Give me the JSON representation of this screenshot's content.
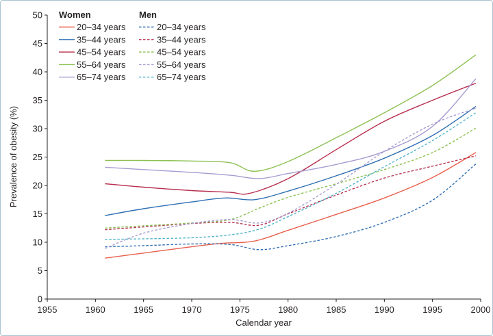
{
  "chart_data": {
    "type": "line",
    "xlabel": "Calendar year",
    "ylabel": "Prevalence of obesity (%)",
    "xlim": [
      1955,
      2000
    ],
    "ylim": [
      0,
      50
    ],
    "x_ticks": [
      "1955",
      "1960",
      "1965",
      "1970",
      "1975",
      "1980",
      "1985",
      "1990",
      "1995",
      "2000"
    ],
    "y_ticks": [
      "0",
      "5",
      "10",
      "15",
      "20",
      "25",
      "30",
      "35",
      "40",
      "45",
      "50"
    ],
    "grid": false,
    "legend": {
      "placement": "top-left",
      "groups": [
        {
          "title": "Women",
          "style": "solid",
          "entries": [
            "20–34 years",
            "35–44 years",
            "45–54 years",
            "55–64 years",
            "65–74 years"
          ]
        },
        {
          "title": "Men",
          "style": "dashed",
          "entries": [
            "20–34 years",
            "35–44 years",
            "45–54 years",
            "55–64 years",
            "65–74 years"
          ]
        }
      ]
    },
    "series": [
      {
        "name": "Women 20–34 years",
        "group": "Women",
        "style": "solid",
        "color": "#e8604c",
        "x": [
          1961,
          1965,
          1970,
          1973,
          1976.5,
          1980,
          1985,
          1990,
          1995,
          1999.5
        ],
        "y": [
          7.2,
          8.1,
          9.2,
          9.8,
          10.2,
          12.1,
          14.9,
          17.8,
          21.4,
          25.8
        ]
      },
      {
        "name": "Women 35–44 years",
        "group": "Women",
        "style": "solid",
        "color": "#2f6fb3",
        "x": [
          1961,
          1965,
          1970,
          1973.5,
          1976.5,
          1980,
          1985,
          1990,
          1995,
          1999.5
        ],
        "y": [
          14.7,
          15.9,
          17.1,
          17.8,
          17.5,
          19.0,
          21.7,
          24.8,
          28.8,
          33.9
        ]
      },
      {
        "name": "Women 45–54 years",
        "group": "Women",
        "style": "solid",
        "color": "#b8304f",
        "x": [
          1961,
          1965,
          1970,
          1974,
          1976,
          1980,
          1985,
          1990,
          1995,
          1999.5
        ],
        "y": [
          20.3,
          19.7,
          19.1,
          18.8,
          18.6,
          21.2,
          26.3,
          31.3,
          35.0,
          38.0
        ]
      },
      {
        "name": "Women 55–64 years",
        "group": "Women",
        "style": "solid",
        "color": "#8cc152",
        "x": [
          1961,
          1965,
          1970,
          1974,
          1976.5,
          1980,
          1985,
          1990,
          1995,
          1999.5
        ],
        "y": [
          24.4,
          24.4,
          24.3,
          24.0,
          22.5,
          24.2,
          28.4,
          32.8,
          37.6,
          43.0
        ]
      },
      {
        "name": "Women 65–74 years",
        "group": "Women",
        "style": "solid",
        "color": "#a89bd1",
        "x": [
          1961,
          1965,
          1970,
          1974,
          1977,
          1980,
          1985,
          1990,
          1995,
          1999.5
        ],
        "y": [
          23.2,
          22.8,
          22.3,
          21.8,
          21.2,
          22.1,
          23.7,
          26.0,
          30.4,
          38.8
        ]
      },
      {
        "name": "Men 20–34 years",
        "group": "Men",
        "style": "dashed",
        "color": "#2f6fb3",
        "x": [
          1961,
          1965,
          1970,
          1974,
          1977,
          1980,
          1985,
          1990,
          1995,
          1999.5
        ],
        "y": [
          9.2,
          9.4,
          9.7,
          9.6,
          8.7,
          9.4,
          11.0,
          13.5,
          17.4,
          23.8
        ]
      },
      {
        "name": "Men 35–44 years",
        "group": "Men",
        "style": "dashed",
        "color": "#b8304f",
        "x": [
          1961,
          1965,
          1970,
          1974,
          1977,
          1980,
          1985,
          1990,
          1995,
          1999.5
        ],
        "y": [
          12.2,
          12.7,
          13.3,
          13.5,
          13.0,
          15.0,
          18.3,
          21.3,
          23.4,
          25.2
        ]
      },
      {
        "name": "Men 45–54 years",
        "group": "Men",
        "style": "dashed",
        "color": "#8cc152",
        "x": [
          1961,
          1965,
          1970,
          1974,
          1977,
          1980,
          1985,
          1990,
          1995,
          1999.5
        ],
        "y": [
          12.5,
          12.9,
          13.4,
          14.0,
          16.0,
          17.9,
          20.3,
          22.8,
          25.8,
          30.1
        ]
      },
      {
        "name": "Men 55–64 years",
        "group": "Men",
        "style": "dashed",
        "color": "#a89bd1",
        "x": [
          1961,
          1965,
          1970,
          1974,
          1977,
          1980,
          1985,
          1990,
          1995,
          1999.5
        ],
        "y": [
          8.9,
          11.6,
          13.3,
          14.0,
          13.4,
          15.1,
          20.2,
          26.0,
          30.8,
          33.6
        ]
      },
      {
        "name": "Men 65–74 years",
        "group": "Men",
        "style": "dashed",
        "color": "#4fb3c9",
        "x": [
          1961,
          1965,
          1970,
          1974,
          1977,
          1980,
          1985,
          1990,
          1995,
          1999.5
        ],
        "y": [
          10.5,
          10.6,
          10.8,
          11.3,
          12.3,
          14.5,
          18.6,
          23.3,
          27.9,
          32.8
        ]
      }
    ]
  }
}
